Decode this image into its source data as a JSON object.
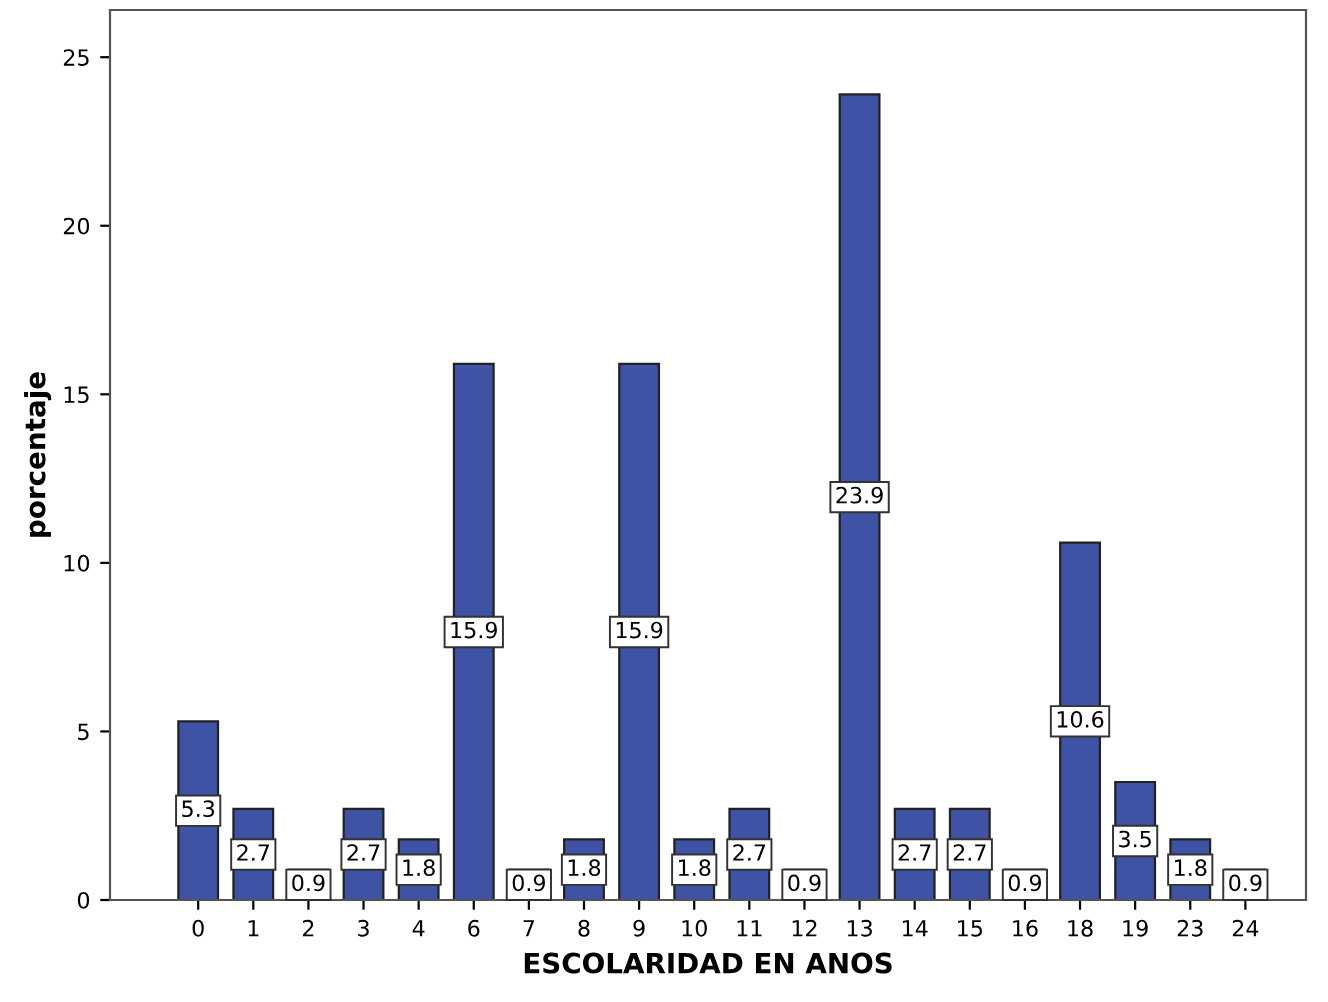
{
  "chart_data": {
    "type": "bar",
    "xlabel": "ESCOLARIDAD EN ANOS",
    "ylabel": "porcentaje",
    "categories": [
      "0",
      "1",
      "2",
      "3",
      "4",
      "6",
      "7",
      "8",
      "9",
      "10",
      "11",
      "12",
      "13",
      "14",
      "15",
      "16",
      "18",
      "19",
      "23",
      "24"
    ],
    "values": [
      5.3,
      2.7,
      0.9,
      2.7,
      1.8,
      15.9,
      0.9,
      1.8,
      15.9,
      1.8,
      2.7,
      0.9,
      23.9,
      2.7,
      2.7,
      0.9,
      10.6,
      3.5,
      1.8,
      0.9
    ],
    "color": "#3e53a4",
    "ylim": [
      0,
      26.4
    ],
    "yticks": [
      0,
      5,
      10,
      15,
      20,
      25
    ],
    "grid": false,
    "legend": false,
    "data_labels": true
  }
}
